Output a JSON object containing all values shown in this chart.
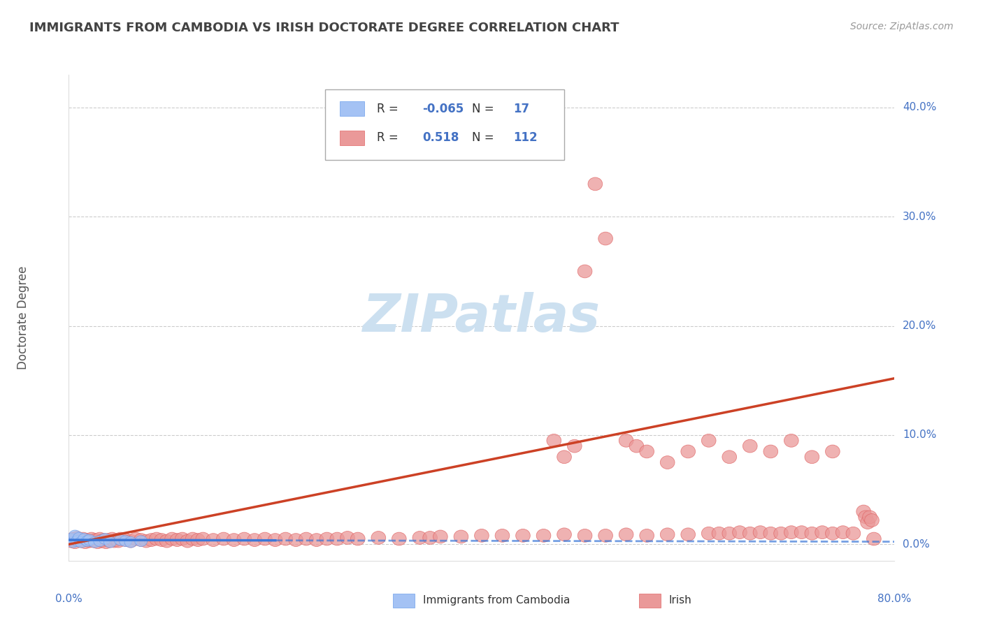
{
  "title": "IMMIGRANTS FROM CAMBODIA VS IRISH DOCTORATE DEGREE CORRELATION CHART",
  "source": "Source: ZipAtlas.com",
  "ylabel": "Doctorate Degree",
  "ytick_values": [
    0.0,
    0.1,
    0.2,
    0.3,
    0.4
  ],
  "ytick_labels": [
    "0.0%",
    "10.0%",
    "20.0%",
    "30.0%",
    "40.0%"
  ],
  "xtick_left_label": "0.0%",
  "xtick_right_label": "80.0%",
  "legend_cambodia_R": "-0.065",
  "legend_cambodia_N": "17",
  "legend_irish_R": "0.518",
  "legend_irish_N": "112",
  "color_cambodia": "#a4c2f4",
  "color_cambodia_edge": "#6d9eeb",
  "color_irish": "#ea9999",
  "color_irish_edge": "#e06666",
  "color_cambodia_line": "#3c78d8",
  "color_irish_line": "#cc4125",
  "color_grid": "#cccccc",
  "color_tick_label": "#4472c4",
  "watermark_color": "#cce0f0",
  "title_color": "#434343",
  "source_color": "#999999",
  "xlim": [
    0.0,
    0.8
  ],
  "ylim": [
    -0.015,
    0.43
  ],
  "cambodia_x": [
    0.002,
    0.004,
    0.006,
    0.008,
    0.01,
    0.012,
    0.015,
    0.018,
    0.02,
    0.025,
    0.03,
    0.035,
    0.04,
    0.05,
    0.055,
    0.06,
    0.07
  ],
  "cambodia_y": [
    0.005,
    0.002,
    0.008,
    0.003,
    0.006,
    0.002,
    0.005,
    0.003,
    0.004,
    0.002,
    0.003,
    0.005,
    0.002,
    0.004,
    0.003,
    0.002,
    0.003
  ],
  "irish_x": [
    0.002,
    0.004,
    0.006,
    0.008,
    0.01,
    0.012,
    0.014,
    0.016,
    0.018,
    0.02,
    0.022,
    0.024,
    0.026,
    0.028,
    0.03,
    0.032,
    0.034,
    0.036,
    0.038,
    0.04,
    0.042,
    0.044,
    0.046,
    0.048,
    0.05,
    0.055,
    0.06,
    0.065,
    0.07,
    0.075,
    0.08,
    0.085,
    0.09,
    0.095,
    0.1,
    0.105,
    0.11,
    0.115,
    0.12,
    0.125,
    0.13,
    0.14,
    0.15,
    0.16,
    0.17,
    0.18,
    0.19,
    0.2,
    0.21,
    0.22,
    0.23,
    0.24,
    0.25,
    0.26,
    0.27,
    0.28,
    0.3,
    0.32,
    0.34,
    0.35,
    0.36,
    0.38,
    0.4,
    0.42,
    0.44,
    0.46,
    0.48,
    0.5,
    0.52,
    0.54,
    0.56,
    0.58,
    0.6,
    0.62,
    0.63,
    0.64,
    0.65,
    0.66,
    0.67,
    0.68,
    0.69,
    0.7,
    0.71,
    0.72,
    0.73,
    0.74,
    0.75,
    0.76,
    0.77,
    0.772,
    0.774,
    0.776,
    0.778,
    0.78,
    0.5,
    0.51,
    0.52,
    0.47,
    0.48,
    0.49,
    0.6,
    0.62,
    0.58,
    0.54,
    0.55,
    0.56,
    0.64,
    0.66,
    0.68,
    0.7,
    0.72,
    0.74
  ],
  "irish_y": [
    0.003,
    0.005,
    0.002,
    0.006,
    0.004,
    0.003,
    0.005,
    0.002,
    0.004,
    0.003,
    0.005,
    0.003,
    0.004,
    0.002,
    0.005,
    0.003,
    0.004,
    0.002,
    0.004,
    0.003,
    0.005,
    0.003,
    0.004,
    0.003,
    0.005,
    0.004,
    0.003,
    0.005,
    0.004,
    0.003,
    0.004,
    0.005,
    0.004,
    0.003,
    0.005,
    0.004,
    0.005,
    0.003,
    0.005,
    0.004,
    0.005,
    0.004,
    0.005,
    0.004,
    0.005,
    0.004,
    0.005,
    0.004,
    0.005,
    0.004,
    0.005,
    0.004,
    0.005,
    0.005,
    0.006,
    0.005,
    0.006,
    0.005,
    0.006,
    0.006,
    0.007,
    0.007,
    0.008,
    0.008,
    0.008,
    0.008,
    0.009,
    0.008,
    0.008,
    0.009,
    0.008,
    0.009,
    0.009,
    0.01,
    0.01,
    0.01,
    0.011,
    0.01,
    0.011,
    0.01,
    0.01,
    0.011,
    0.011,
    0.01,
    0.011,
    0.01,
    0.011,
    0.01,
    0.03,
    0.025,
    0.02,
    0.025,
    0.022,
    0.005,
    0.25,
    0.33,
    0.28,
    0.095,
    0.08,
    0.09,
    0.085,
    0.095,
    0.075,
    0.095,
    0.09,
    0.085,
    0.08,
    0.09,
    0.085,
    0.095,
    0.08,
    0.085
  ]
}
